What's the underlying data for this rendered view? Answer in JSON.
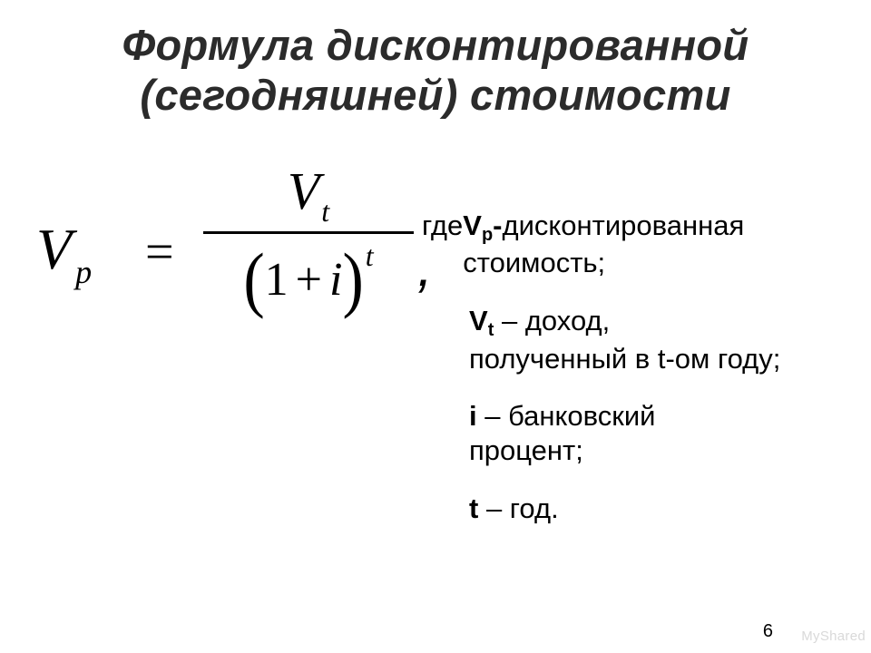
{
  "title_line1": "Формула дисконтированной",
  "title_line2": "(сегодняшней) стоимости",
  "formula": {
    "lhs_var": "V",
    "lhs_sub": "p",
    "equals": "=",
    "num_var": "V",
    "num_sub": "t",
    "den_one": "1",
    "den_plus": "+",
    "den_i": "i",
    "den_sup": "t",
    "comma": ","
  },
  "defs": {
    "where": "где ",
    "vp_sym": "V",
    "vp_sub": "p",
    "vp_dash": "-",
    "vp_text_a": "дисконтированная",
    "vp_text_b": "стоимость;",
    "vt_sym": "V",
    "vt_sub": "t",
    "vt_dash": " – ",
    "vt_text_a": "доход,",
    "vt_text_b": "полученный в t-ом году;",
    "i_sym": "i",
    "i_dash": " – ",
    "i_text_a": "банковский",
    "i_text_b": "процент;",
    "t_sym": "t",
    "t_dash": " – ",
    "t_text": "год."
  },
  "page_number": "6",
  "watermark": "MyShared",
  "colors": {
    "text": "#000000",
    "title": "#2b2b2b",
    "background": "#ffffff",
    "watermark": "#d9d9d9"
  },
  "fonts": {
    "title_pt": 47,
    "body_pt": 31,
    "formula_main_pt": 58
  }
}
